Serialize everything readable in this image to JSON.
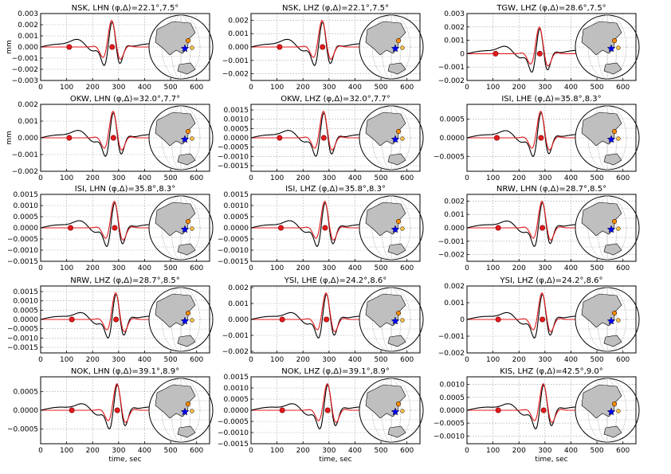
{
  "figure": {
    "ylabel": "mm",
    "xlabel": "time, sec",
    "colors": {
      "observed": "#000000",
      "synthetic": "#e41a1c",
      "marker": "#e41a1c",
      "ocean": "#ffffff",
      "land": "#bfbfbf",
      "star": "#0000ff",
      "stations": "#ff8c00"
    }
  },
  "chart_data": [
    {
      "type": "line",
      "title": "NSK, LHN (φ,Δ)=22.1°,7.5°",
      "xlim": [
        0,
        650
      ],
      "ylim": [
        -0.003,
        0.003
      ],
      "xticks": [
        0,
        100,
        200,
        300,
        400,
        500,
        600
      ],
      "yticks": [
        "0.003",
        "0.002",
        "0.001",
        "0.000",
        "−0.001",
        "−0.002",
        "−0.003"
      ],
      "markers_x": [
        110,
        275
      ],
      "series": [
        {
          "values": []
        },
        {
          "values": []
        }
      ]
    },
    {
      "type": "line",
      "title": "NSK, LHZ (φ,Δ)=22.1°,7.5°",
      "xlim": [
        0,
        650
      ],
      "ylim": [
        -0.0025,
        0.0025
      ],
      "xticks": [
        0,
        100,
        200,
        300,
        400,
        500,
        600
      ],
      "yticks": [
        "0.002",
        "0.001",
        "0.000",
        "−0.001",
        "−0.002"
      ],
      "markers_x": [
        110,
        275
      ]
    },
    {
      "type": "line",
      "title": "TGW, LHZ (φ,Δ)=28.6°,7.5°",
      "xlim": [
        0,
        650
      ],
      "ylim": [
        -0.002,
        0.003
      ],
      "xticks": [
        0,
        100,
        200,
        300,
        400,
        500,
        600
      ],
      "yticks": [
        "0.003",
        "0.002",
        "0.001",
        "0",
        "−0.001",
        "−0.002"
      ],
      "markers_x": [
        110,
        280
      ]
    },
    {
      "type": "line",
      "title": "OKW, LHN (φ,Δ)=32.0°,7.7°",
      "xlim": [
        0,
        650
      ],
      "ylim": [
        -0.002,
        0.002
      ],
      "xticks": [
        0,
        100,
        200,
        300,
        400,
        500,
        600
      ],
      "yticks": [
        "0.002",
        "0.001",
        "0.000",
        "−0.001",
        "−0.002"
      ],
      "markers_x": [
        110,
        280
      ]
    },
    {
      "type": "line",
      "title": "OKW, LHZ (φ,Δ)=32.0°,7.7°",
      "xlim": [
        0,
        650
      ],
      "ylim": [
        -0.0018,
        0.0018
      ],
      "xticks": [
        0,
        100,
        200,
        300,
        400,
        500,
        600
      ],
      "yticks": [
        "0.0015",
        "0.0010",
        "0.0005",
        "0.0000",
        "−0.0005",
        "−0.0010",
        "−0.0015"
      ],
      "markers_x": [
        110,
        280
      ]
    },
    {
      "type": "line",
      "title": "ISI, LHE (φ,Δ)=35.8°,8.3°",
      "xlim": [
        0,
        650
      ],
      "ylim": [
        -0.0009,
        0.0009
      ],
      "xticks": [
        0,
        100,
        200,
        300,
        400,
        500,
        600
      ],
      "yticks": [
        "0.0005",
        "0.0000",
        "−0.0005"
      ],
      "markers_x": [
        115,
        285
      ]
    },
    {
      "type": "line",
      "title": "ISI, LHN (φ,Δ)=35.8°,8.3°",
      "xlim": [
        0,
        650
      ],
      "ylim": [
        -0.0015,
        0.0015
      ],
      "xticks": [
        0,
        100,
        200,
        300,
        400,
        500,
        600
      ],
      "yticks": [
        "0.0015",
        "0.0010",
        "0.0005",
        "0.0000",
        "−0.0005",
        "−0.0010",
        "−0.0015"
      ],
      "markers_x": [
        115,
        285
      ]
    },
    {
      "type": "line",
      "title": "ISI, LHZ (φ,Δ)=35.8°,8.3°",
      "xlim": [
        0,
        650
      ],
      "ylim": [
        -0.0015,
        0.0015
      ],
      "xticks": [
        0,
        100,
        200,
        300,
        400,
        500,
        600
      ],
      "yticks": [
        "0.0015",
        "0.0010",
        "0.0005",
        "0.0000",
        "−0.0005",
        "−0.0010",
        "−0.0015"
      ],
      "markers_x": [
        115,
        285
      ]
    },
    {
      "type": "line",
      "title": "NRW, LHN (φ,Δ)=28.7°,8.5°",
      "xlim": [
        0,
        650
      ],
      "ylim": [
        -0.0025,
        0.0025
      ],
      "xticks": [
        0,
        100,
        200,
        300,
        400,
        500,
        600
      ],
      "yticks": [
        "0.002",
        "0.001",
        "0.000",
        "−0.001",
        "−0.002"
      ],
      "markers_x": [
        120,
        290
      ]
    },
    {
      "type": "line",
      "title": "NRW, LHZ (φ,Δ)=28.7°,8.5°",
      "xlim": [
        0,
        650
      ],
      "ylim": [
        -0.0018,
        0.0018
      ],
      "xticks": [
        0,
        100,
        200,
        300,
        400,
        500,
        600
      ],
      "yticks": [
        "0.0015",
        "0.0010",
        "0.0005",
        "0.0000",
        "−0.0005",
        "−0.0010",
        "−0.0015"
      ],
      "markers_x": [
        120,
        290
      ]
    },
    {
      "type": "line",
      "title": "YSI, LHE (φ,Δ)=24.2°,8.6°",
      "xlim": [
        0,
        650
      ],
      "ylim": [
        -0.0021,
        0.0021
      ],
      "xticks": [
        0,
        100,
        200,
        300,
        400,
        500,
        600
      ],
      "yticks": [
        "0.002",
        "0.001",
        "0.000",
        "−0.001",
        "−0.002"
      ],
      "markers_x": [
        120,
        290
      ]
    },
    {
      "type": "line",
      "title": "YSI, LHZ (φ,Δ)=24.2°,8.6°",
      "xlim": [
        0,
        650
      ],
      "ylim": [
        -0.002,
        0.002
      ],
      "xticks": [
        0,
        100,
        200,
        300,
        400,
        500,
        600
      ],
      "yticks": [
        "0.002",
        "0.001",
        "0",
        "−0.001",
        "−0.002"
      ],
      "markers_x": [
        120,
        290
      ]
    },
    {
      "type": "line",
      "title": "NOK, LHN (φ,Δ)=39.1°,8.9°",
      "xlim": [
        0,
        650
      ],
      "ylim": [
        -0.0009,
        0.0009
      ],
      "xticks": [
        0,
        100,
        200,
        300,
        400,
        500,
        600
      ],
      "yticks": [
        "0.0005",
        "0.0000",
        "−0.0005"
      ],
      "markers_x": [
        120,
        295
      ]
    },
    {
      "type": "line",
      "title": "NOK, LHZ (φ,Δ)=39.1°,8.9°",
      "xlim": [
        0,
        650
      ],
      "ylim": [
        -0.0015,
        0.0015
      ],
      "xticks": [
        0,
        100,
        200,
        300,
        400,
        500,
        600
      ],
      "yticks": [
        "0.0015",
        "0.0010",
        "0.0005",
        "0.0000",
        "−0.0005",
        "−0.0010",
        "−0.0015"
      ],
      "markers_x": [
        120,
        295
      ]
    },
    {
      "type": "line",
      "title": "KIS, LHZ (φ,Δ)=42.5°,9.0°",
      "xlim": [
        0,
        650
      ],
      "ylim": [
        -0.0013,
        0.0013
      ],
      "xticks": [
        0,
        100,
        200,
        300,
        400,
        500,
        600
      ],
      "yticks": [
        "0.0010",
        "0.0005",
        "0.0000",
        "−0.0005",
        "−0.0010"
      ],
      "markers_x": [
        120,
        295
      ]
    }
  ]
}
